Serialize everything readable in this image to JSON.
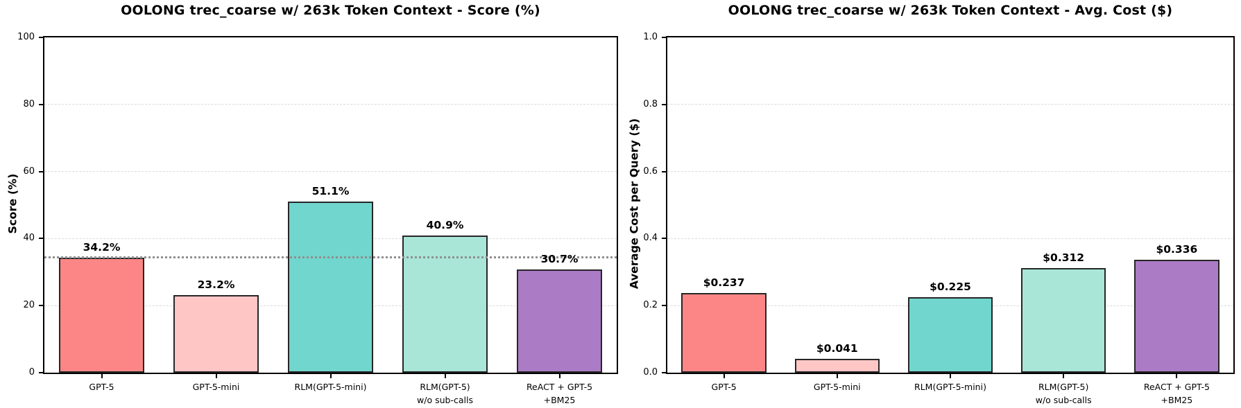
{
  "figure": {
    "background_color": "#ffffff",
    "text_color": "#000000",
    "spine_color": "#000000",
    "grid_color": "#d9d9d9"
  },
  "chart_data": [
    {
      "type": "bar",
      "title": "OOLONG trec_coarse w/ 263k Token Context - Score (%)",
      "xlabel": "",
      "ylabel": "Score (%)",
      "ylim": [
        0,
        100
      ],
      "grid": true,
      "legend": null,
      "yticks": [
        {
          "value": 0,
          "label": "0"
        },
        {
          "value": 20,
          "label": "20"
        },
        {
          "value": 40,
          "label": "40"
        },
        {
          "value": 60,
          "label": "60"
        },
        {
          "value": 80,
          "label": "80"
        },
        {
          "value": 100,
          "label": "100"
        }
      ],
      "categories": [
        "GPT-5",
        "GPT-5-mini",
        "RLM(GPT-5-mini)",
        "RLM(GPT-5)\nw/o sub-calls",
        "ReACT + GPT-5\n+BM25"
      ],
      "values": [
        34.2,
        23.2,
        51.1,
        40.9,
        30.7
      ],
      "value_labels": [
        "34.2%",
        "23.2%",
        "51.1%",
        "40.9%",
        "30.7%"
      ],
      "bar_colors": [
        "#FC8686",
        "#FFC6C6",
        "#71D6CD",
        "#A9E6D8",
        "#AB7BC6"
      ],
      "bar_edge_color": "#262626",
      "reference_line": {
        "y": 34.2,
        "color": "#8f8f8f",
        "style": "dotted"
      }
    },
    {
      "type": "bar",
      "title": "OOLONG trec_coarse w/ 263k Token Context - Avg. Cost ($)",
      "xlabel": "",
      "ylabel": "Average Cost per Query ($)",
      "ylim": [
        0,
        1.0
      ],
      "grid": true,
      "legend": null,
      "yticks": [
        {
          "value": 0,
          "label": "0.0"
        },
        {
          "value": 0.2,
          "label": "0.2"
        },
        {
          "value": 0.4,
          "label": "0.4"
        },
        {
          "value": 0.6,
          "label": "0.6"
        },
        {
          "value": 0.8,
          "label": "0.8"
        },
        {
          "value": 1.0,
          "label": "1.0"
        }
      ],
      "categories": [
        "GPT-5",
        "GPT-5-mini",
        "RLM(GPT-5-mini)",
        "RLM(GPT-5)\nw/o sub-calls",
        "ReACT + GPT-5\n+BM25"
      ],
      "values": [
        0.237,
        0.041,
        0.225,
        0.312,
        0.336
      ],
      "value_labels": [
        "$0.237",
        "$0.041",
        "$0.225",
        "$0.312",
        "$0.336"
      ],
      "bar_colors": [
        "#FC8686",
        "#FFC6C6",
        "#71D6CD",
        "#A9E6D8",
        "#AB7BC6"
      ],
      "bar_edge_color": "#262626",
      "reference_line": null
    }
  ]
}
